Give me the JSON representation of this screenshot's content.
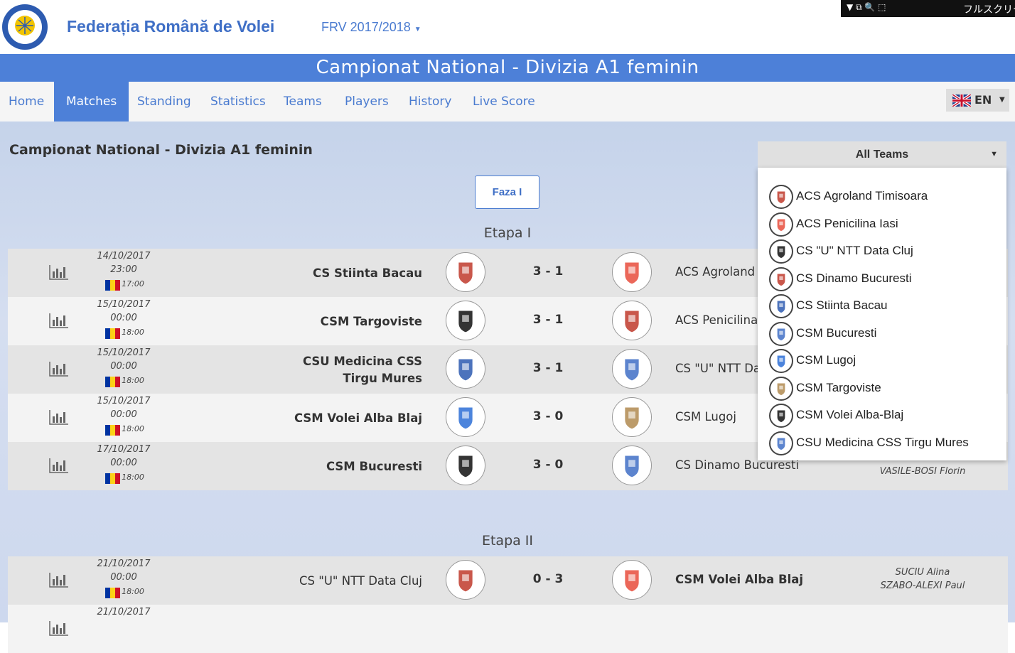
{
  "header": {
    "title": "Federația Română de Volei",
    "season": "FRV 2017/2018",
    "toolbar_text": "フルスクリーン"
  },
  "banner": {
    "title": "Campionat National - Divizia A1 feminin"
  },
  "nav": {
    "items": [
      "Home",
      "Matches",
      "Standing",
      "Statistics",
      "Teams",
      "Players",
      "History",
      "Live Score"
    ],
    "active": 1,
    "language": "EN"
  },
  "page": {
    "heading": "Campionat National - Divizia A1 feminin",
    "phase_button": "Faza I"
  },
  "team_filter": {
    "selected": "All Teams",
    "options": [
      "ACS Agroland Timisoara",
      "ACS Penicilina Iasi",
      "CS \"U\" NTT Data Cluj",
      "CS Dinamo Bucuresti",
      "CS Stiinta Bacau",
      "CSM Bucuresti",
      "CSM Lugoj",
      "CSM Targoviste",
      "CSM Volei Alba-Blaj",
      "CSU Medicina CSS Tirgu Mures"
    ]
  },
  "sections": [
    {
      "title": "Etapa I",
      "matches": [
        {
          "date": "14/10/2017",
          "time": "23:00",
          "local_time": "17:00",
          "home": "CS Stiinta Bacau",
          "score": "3 - 1",
          "away": "ACS Agroland Timisoara",
          "winner": "home"
        },
        {
          "date": "15/10/2017",
          "time": "00:00",
          "local_time": "18:00",
          "home": "CSM Targoviste",
          "score": "3 - 1",
          "away": "ACS Penicilina Iasi",
          "winner": "home"
        },
        {
          "date": "15/10/2017",
          "time": "00:00",
          "local_time": "18:00",
          "home": "CSU Medicina CSS Tirgu Mures",
          "score": "3 - 1",
          "away": "CS \"U\" NTT Data Cluj",
          "winner": "home"
        },
        {
          "date": "15/10/2017",
          "time": "00:00",
          "local_time": "18:00",
          "home": "CSM Volei Alba Blaj",
          "score": "3 - 0",
          "away": "CSM Lugoj",
          "winner": "home"
        },
        {
          "date": "17/10/2017",
          "time": "00:00",
          "local_time": "18:00",
          "home": "CSM Bucuresti",
          "score": "3 - 0",
          "away": "CS Dinamo Bucuresti",
          "winner": "home",
          "referees": [
            "VASILE-BOSI Florin"
          ]
        }
      ]
    },
    {
      "title": "Etapa II",
      "matches": [
        {
          "date": "21/10/2017",
          "time": "00:00",
          "local_time": "18:00",
          "home": "CS \"U\" NTT Data Cluj",
          "score": "0 - 3",
          "away": "CSM Volei Alba Blaj",
          "winner": "away",
          "referees": [
            "SUCIU Alina",
            "SZABO-ALEXI Paul"
          ]
        },
        {
          "date": "21/10/2017"
        }
      ]
    }
  ]
}
